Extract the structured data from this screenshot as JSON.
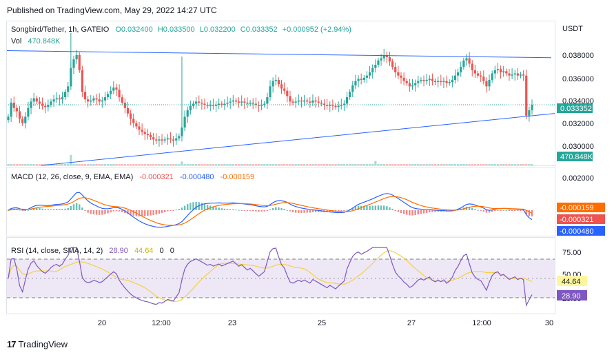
{
  "published": "Published on TradingView.com, May 29, 2022 14:27 UTC",
  "footer": {
    "brand": "TradingView",
    "logo_text": "17"
  },
  "colors": {
    "up": "#26a69a",
    "down": "#ef5350",
    "trend": "#2962ff",
    "macd": "#2962ff",
    "signal": "#ff6d00",
    "rsi": "#7e57c2",
    "rsi_ma": "#f7d13f",
    "rsi_band": "#ede7f6",
    "price_line": "#26a69a"
  },
  "chart_data": [
    {
      "type": "candlestick",
      "title": "Songbird/Tether, 1h, GATEIO",
      "quote_currency": "USDT",
      "ohlc": {
        "O": "O0.032400",
        "H": "H0.033500",
        "L": "L0.032200",
        "C": "C0.033352",
        "change": "+0.000952 (+2.94%)"
      },
      "volume_label": "Vol",
      "volume_value": "470.848K",
      "current_price_label": "0.033352",
      "y_ticks": [
        "0.038000",
        "0.036000",
        "0.034000",
        "0.032000",
        "0.030000"
      ],
      "ylim": [
        0.0291,
        0.0398
      ],
      "x_ticks": [
        "20",
        "12:00",
        "23",
        "25",
        "27",
        "12:00",
        "30"
      ],
      "close": [
        0.0322,
        0.0335,
        0.033,
        0.0327,
        0.032,
        0.0316,
        0.0322,
        0.033,
        0.0336,
        0.0339,
        0.0336,
        0.0334,
        0.0332,
        0.0331,
        0.0333,
        0.0336,
        0.0338,
        0.0339,
        0.0338,
        0.034,
        0.0345,
        0.035,
        0.0367,
        0.0375,
        0.0379,
        0.0365,
        0.0345,
        0.0338,
        0.0336,
        0.0337,
        0.0339,
        0.0338,
        0.0336,
        0.0337,
        0.034,
        0.0343,
        0.0346,
        0.0349,
        0.0347,
        0.034,
        0.0335,
        0.033,
        0.0325,
        0.032,
        0.0316,
        0.0313,
        0.031,
        0.0308,
        0.0306,
        0.0305,
        0.0303,
        0.0301,
        0.03,
        0.0301,
        0.03,
        0.0301,
        0.0302,
        0.0301,
        0.03,
        0.0302,
        0.0304,
        0.0312,
        0.0322,
        0.0328,
        0.0332,
        0.0334,
        0.0336,
        0.0335,
        0.0334,
        0.0333,
        0.0332,
        0.0333,
        0.0332,
        0.0333,
        0.0334,
        0.0333,
        0.0334,
        0.0335,
        0.0336,
        0.0337,
        0.0336,
        0.0335,
        0.0336,
        0.0335,
        0.0334,
        0.0335,
        0.0334,
        0.0333,
        0.0332,
        0.0333,
        0.0334,
        0.034,
        0.035,
        0.0355,
        0.0356,
        0.0352,
        0.0348,
        0.0346,
        0.0341,
        0.0336,
        0.0335,
        0.0336,
        0.0337,
        0.0336,
        0.0337,
        0.0336,
        0.0335,
        0.0337,
        0.0336,
        0.0335,
        0.0334,
        0.0333,
        0.0332,
        0.0333,
        0.0332,
        0.0331,
        0.0332,
        0.0333,
        0.0334,
        0.034,
        0.0345,
        0.0351,
        0.0355,
        0.0357,
        0.0356,
        0.0358,
        0.036,
        0.0363,
        0.0367,
        0.037,
        0.0374,
        0.0376,
        0.0379,
        0.0377,
        0.0373,
        0.0368,
        0.0363,
        0.036,
        0.0358,
        0.0355,
        0.0353,
        0.035,
        0.0351,
        0.0353,
        0.0355,
        0.0356,
        0.0355,
        0.0356,
        0.0357,
        0.0355,
        0.0354,
        0.0355,
        0.0354,
        0.0355,
        0.0353,
        0.0354,
        0.0356,
        0.036,
        0.0363,
        0.0368,
        0.0374,
        0.0376,
        0.0371,
        0.0365,
        0.0362,
        0.036,
        0.0359,
        0.0355,
        0.035,
        0.0356,
        0.0362,
        0.0365,
        0.0366,
        0.0363,
        0.0364,
        0.0362,
        0.036,
        0.0361,
        0.0362,
        0.036,
        0.0361,
        0.036,
        0.0323,
        0.0328,
        0.0333
      ],
      "volume_spikes": [
        {
          "bar": 22,
          "v": 470.8
        },
        {
          "bar": 61,
          "v": 180
        },
        {
          "bar": 129,
          "v": 200
        },
        {
          "bar": 185,
          "v": 280
        }
      ]
    },
    {
      "type": "line",
      "title": "MACD (12, 26, close, 9, EMA, EMA)",
      "values": {
        "histogram": "-0.000321",
        "macd": "-0.000480",
        "signal": "-0.000159"
      },
      "y_ticks": [
        "0.002000"
      ]
    },
    {
      "type": "line",
      "title": "RSI (14, close, SMA, 14, 2)",
      "values": {
        "rsi": "28.90",
        "rsi_ma": "44.64",
        "a": "0",
        "b": "0"
      },
      "y_ticks": [
        "75.00",
        "50.00",
        "25.00"
      ],
      "ylim": [
        15,
        85
      ],
      "bands": [
        70,
        30
      ]
    }
  ]
}
